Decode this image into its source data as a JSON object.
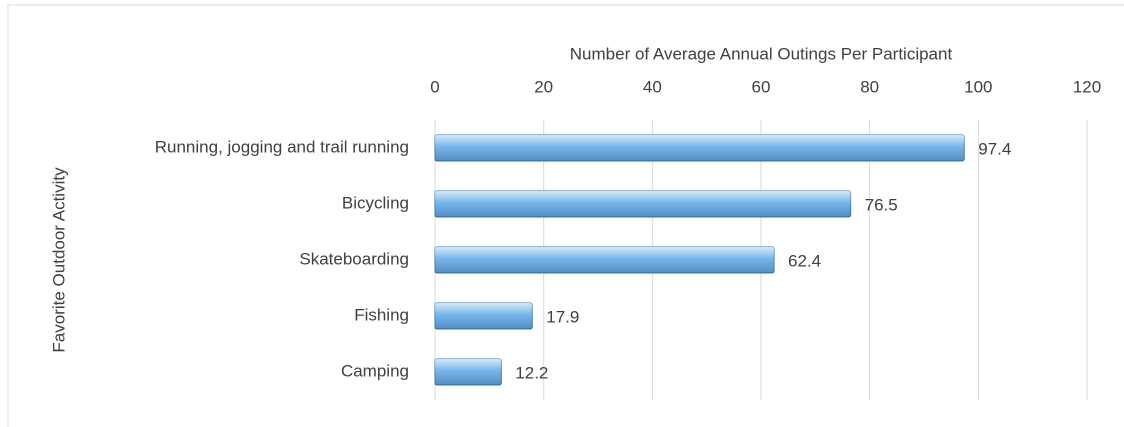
{
  "chart_data": {
    "type": "bar",
    "orientation": "horizontal",
    "x_axis_label": "Number of Average Annual Outings Per Participant",
    "y_axis_label": "Favorite Outdoor Activity",
    "categories": [
      "Running, jogging and trail running",
      "Bicycling",
      "Skateboarding",
      "Fishing",
      "Camping"
    ],
    "values": [
      97.4,
      76.5,
      62.4,
      17.9,
      12.2
    ],
    "color": "#5fa8e6",
    "xlim": [
      0,
      120
    ],
    "xticks": [
      0,
      20,
      40,
      60,
      80,
      100,
      120
    ],
    "grid": true
  }
}
